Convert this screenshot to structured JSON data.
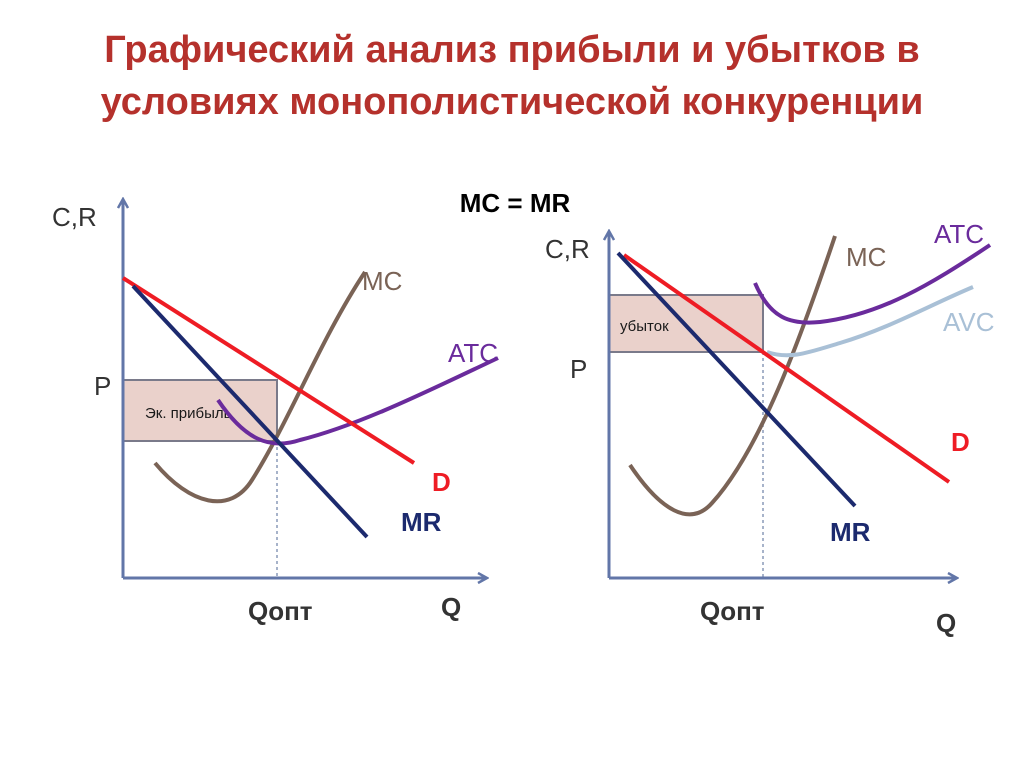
{
  "title": {
    "line1": "Графический анализ прибыли и убытков в",
    "line2": "условиях монополистической конкуренции"
  },
  "subtitle": "MC = MR",
  "colors": {
    "title": "#b5312c",
    "axis": "#6276a8",
    "mc": "#7a6356",
    "atc": "#6a2b9c",
    "avc": "#a9c0d6",
    "demand": "#ee1c24",
    "mr": "#1c2a6e",
    "rect_fill": "#ead1cb",
    "rect_stroke": "#7a7a8a",
    "label_dark": "#333333"
  },
  "left": {
    "y_axis_label": "C,R",
    "x_axis_label": "Q",
    "price_label": "P",
    "q_label": "Qопт",
    "rect_label": "Эк. прибыль",
    "mc_label": "MC",
    "atc_label": "ATC",
    "d_label": "D",
    "mr_label": "MR"
  },
  "right": {
    "y_axis_label": "C,R",
    "x_axis_label": "Q",
    "price_label": "P",
    "q_label": "Qопт",
    "rect_label": "убыток",
    "mc_label": "MC",
    "atc_label": "ATC",
    "avc_label": "AVC",
    "d_label": "D",
    "mr_label": "MR"
  }
}
